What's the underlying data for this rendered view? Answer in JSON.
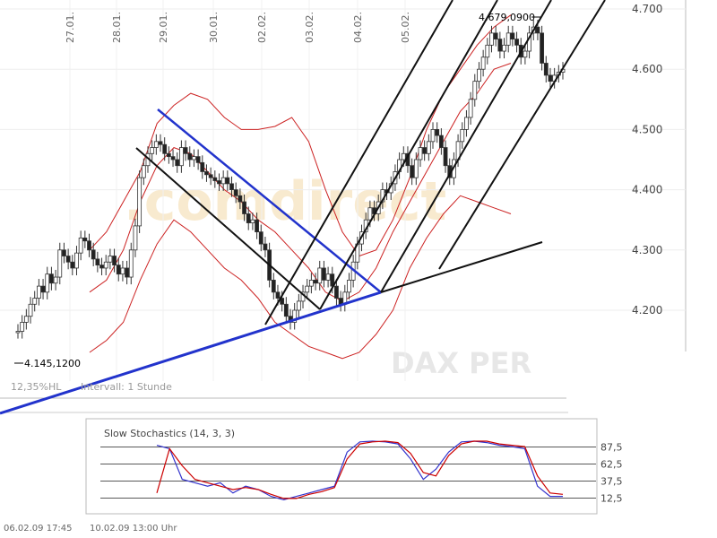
{
  "chart_data": [
    {
      "type": "candlestick",
      "x_ticks": [
        "27.01.",
        "28.01.",
        "29.01.",
        "30.01.",
        "02.02.",
        "03.02.",
        "04.02.",
        "05.02."
      ],
      "y_ticks": [
        "4.200",
        "4.300",
        "4.400",
        "4.500",
        "4.600",
        "4.700"
      ],
      "ylim": [
        4090,
        4730
      ],
      "low_annotation": "4.145,1200",
      "high_annotation": "4.679,0900",
      "status_left": "12,35%HL",
      "interval": "Intervall: 1 Stunde",
      "watermark": "DAX PER",
      "close_series": [
        4165,
        4180,
        4190,
        4210,
        4220,
        4240,
        4230,
        4260,
        4245,
        4255,
        4300,
        4290,
        4280,
        4270,
        4295,
        4320,
        4315,
        4300,
        4285,
        4275,
        4270,
        4280,
        4290,
        4275,
        4260,
        4270,
        4255,
        4300,
        4340,
        4420,
        4440,
        4460,
        4470,
        4480,
        4475,
        4460,
        4455,
        4450,
        4440,
        4470,
        4460,
        4450,
        4455,
        4445,
        4430,
        4425,
        4420,
        4415,
        4410,
        4420,
        4410,
        4400,
        4390,
        4380,
        4360,
        4345,
        4350,
        4330,
        4310,
        4300,
        4250,
        4230,
        4220,
        4210,
        4190,
        4180,
        4200,
        4215,
        4230,
        4240,
        4250,
        4245,
        4270,
        4250,
        4260,
        4240,
        4220,
        4210,
        4230,
        4250,
        4280,
        4310,
        4330,
        4350,
        4370,
        4360,
        4380,
        4400,
        4395,
        4410,
        4430,
        4450,
        4460,
        4440,
        4420,
        4450,
        4470,
        4460,
        4480,
        4500,
        4490,
        4470,
        4440,
        4420,
        4450,
        4480,
        4500,
        4520,
        4550,
        4580,
        4600,
        4620,
        4640,
        4660,
        4650,
        4630,
        4640,
        4660,
        4650,
        4640,
        4620,
        4630,
        4660,
        4670,
        4660,
        4610,
        4590,
        4580,
        4590,
        4595,
        4600
      ],
      "bands": {
        "upper": [
          4300,
          4330,
          4380,
          4430,
          4510,
          4540,
          4560,
          4550,
          4520,
          4500,
          4500,
          4505,
          4520,
          4480,
          4400,
          4330,
          4290,
          4300,
          4350,
          4420,
          4500,
          4560,
          4600,
          4640,
          4670,
          4690
        ],
        "middle": [
          4230,
          4250,
          4300,
          4380,
          4440,
          4470,
          4460,
          4430,
          4400,
          4380,
          4350,
          4330,
          4300,
          4270,
          4230,
          4215,
          4230,
          4270,
          4330,
          4380,
          4430,
          4480,
          4530,
          4560,
          4600,
          4610
        ],
        "lower": [
          4130,
          4150,
          4180,
          4250,
          4310,
          4350,
          4330,
          4300,
          4270,
          4250,
          4220,
          4180,
          4160,
          4140,
          4130,
          4120,
          4130,
          4160,
          4200,
          4270,
          4320,
          4360,
          4390,
          4380,
          4370,
          4360
        ]
      }
    },
    {
      "type": "line",
      "title": "Slow Stochastics (14, 3, 3)",
      "y_ticks": [
        "87,5",
        "62,5",
        "37,5",
        "12,5"
      ],
      "ylim": [
        0,
        100
      ],
      "series": [
        {
          "color": "#3333cc",
          "values": [
            90,
            85,
            40,
            35,
            30,
            35,
            20,
            30,
            25,
            15,
            10,
            15,
            20,
            25,
            30,
            80,
            95,
            96,
            95,
            92,
            70,
            40,
            55,
            80,
            95,
            96,
            94,
            90,
            88,
            85,
            30,
            15,
            15
          ]
        },
        {
          "color": "#cc0000",
          "values": [
            20,
            85,
            60,
            40,
            35,
            30,
            25,
            28,
            25,
            18,
            12,
            12,
            18,
            22,
            28,
            70,
            92,
            95,
            96,
            94,
            78,
            50,
            45,
            75,
            92,
            96,
            96,
            92,
            90,
            88,
            45,
            20,
            18
          ]
        }
      ]
    }
  ],
  "footer": {
    "left": "06.02.09     17:45",
    "right": "10.02.09     13:00 Uhr"
  }
}
